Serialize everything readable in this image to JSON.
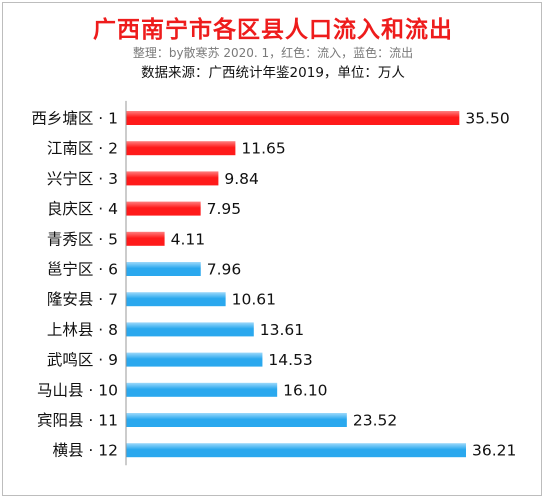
{
  "header": {
    "title": "广西南宁市各区县人口流入和流出",
    "subtitle": "整理：by散寒苏  2020. 1，红色：流入，蓝色：流出",
    "source": "数据来源：广西统计年鉴2019，单位：万人"
  },
  "colors": {
    "inflow": "#ff1a1a",
    "outflow": "#2aa8ee",
    "axis": "#9a9a9a"
  },
  "chart_data": {
    "type": "bar",
    "orientation": "horizontal",
    "title": "广西南宁市各区县人口流入和流出",
    "categories": [
      "西乡塘区 · 1",
      "江南区 · 2",
      "兴宁区 · 3",
      "良庆区 · 4",
      "青秀区 · 5",
      "邕宁区 · 6",
      "隆安县 · 7",
      "上林县 · 8",
      "武鸣区 · 9",
      "马山县 · 10",
      "宾阳县 · 11",
      "横县 · 12"
    ],
    "values": [
      35.5,
      11.65,
      9.84,
      7.95,
      4.11,
      7.96,
      10.61,
      13.61,
      14.53,
      16.1,
      23.52,
      36.21
    ],
    "value_labels": [
      "35.50",
      "11.65",
      "9.84",
      "7.95",
      "4.11",
      "7.96",
      "10.61",
      "13.61",
      "14.53",
      "16.10",
      "23.52",
      "36.21"
    ],
    "direction": [
      "流入",
      "流入",
      "流入",
      "流入",
      "流入",
      "流出",
      "流出",
      "流出",
      "流出",
      "流出",
      "流出",
      "流出"
    ],
    "xlim": [
      0,
      36.21
    ],
    "grid": false,
    "legend": "none"
  }
}
